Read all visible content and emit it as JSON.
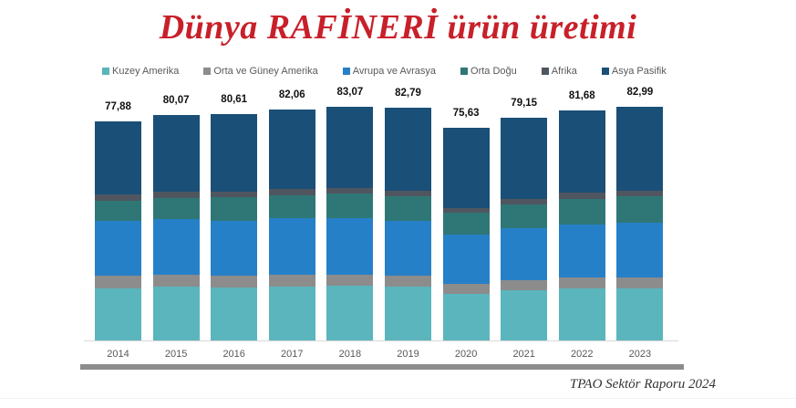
{
  "title": "Dünya RAFİNERİ ürün üretimi",
  "source": "TPAO Sektör Raporu 2024",
  "legend": [
    {
      "label": "Kuzey Amerika",
      "color": "#5ab5bd"
    },
    {
      "label": "Orta ve Güney Amerika",
      "color": "#8c8c8c"
    },
    {
      "label": "Avrupa ve Avrasya",
      "color": "#2680c8"
    },
    {
      "label": "Orta Doğu",
      "color": "#2f7776"
    },
    {
      "label": "Afrika",
      "color": "#4f5660"
    },
    {
      "label": "Asya Pasifik",
      "color": "#1a4f77"
    }
  ],
  "chart_data": {
    "type": "bar",
    "stacked": true,
    "title": "Dünya RAFİNERİ ürün üretimi",
    "xlabel": "",
    "ylabel": "",
    "categories": [
      "2014",
      "2015",
      "2016",
      "2017",
      "2018",
      "2019",
      "2020",
      "2021",
      "2022",
      "2023"
    ],
    "totals": [
      77.88,
      80.07,
      80.61,
      82.06,
      83.07,
      82.79,
      75.63,
      79.15,
      81.68,
      82.99
    ],
    "total_labels": [
      "77,88",
      "80,07",
      "80,61",
      "82,06",
      "83,07",
      "82,79",
      "75,63",
      "79,15",
      "81,68",
      "82,99"
    ],
    "series": [
      {
        "name": "Kuzey Amerika",
        "values": [
          18.5,
          19.0,
          18.8,
          19.2,
          19.4,
          19.1,
          16.7,
          17.8,
          18.4,
          18.6
        ]
      },
      {
        "name": "Orta ve Güney Amerika",
        "values": [
          4.6,
          4.4,
          4.2,
          4.1,
          4.0,
          3.8,
          3.3,
          3.6,
          3.9,
          3.9
        ]
      },
      {
        "name": "Avrupa ve Avrasya",
        "values": [
          19.5,
          19.8,
          19.7,
          20.1,
          20.2,
          19.7,
          17.6,
          18.4,
          19.1,
          19.4
        ]
      },
      {
        "name": "Orta Doğu",
        "values": [
          7.2,
          7.6,
          8.2,
          8.3,
          8.6,
          8.6,
          7.8,
          8.6,
          9.0,
          9.3
        ]
      },
      {
        "name": "Afrika",
        "values": [
          2.2,
          2.1,
          2.1,
          2.1,
          2.1,
          2.0,
          1.8,
          2.0,
          2.1,
          2.1
        ]
      },
      {
        "name": "Asya Pasifik",
        "values": [
          25.88,
          27.17,
          27.61,
          28.26,
          28.77,
          29.59,
          28.43,
          28.75,
          29.18,
          29.69
        ]
      }
    ],
    "ylim": [
      0,
      90
    ],
    "grid": false,
    "legend_position": "top"
  }
}
